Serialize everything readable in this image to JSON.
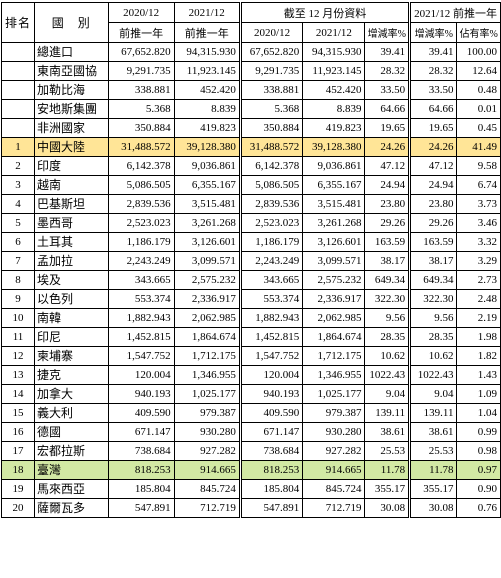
{
  "headers": {
    "rank": "排名",
    "country": "國　別",
    "y2020": "2020/12",
    "y2021": "2021/12",
    "dec_group": "截至 12 月份資料",
    "pre_year": "前推一年",
    "col_2020": "2020/12",
    "col_2021": "2021/12",
    "growth": "增減率%",
    "pre_group": "2021/12 前推一年",
    "growth2": "增減率%",
    "share": "佔有率%"
  },
  "summary_rows": [
    {
      "rank": "",
      "name": "總進口",
      "a": "67,652.820",
      "b": "94,315.930",
      "c": "67,652.820",
      "d": "94,315.930",
      "e": "39.41",
      "f": "39.41",
      "g": "100.00"
    },
    {
      "rank": "",
      "name": "東南亞國協",
      "a": "9,291.735",
      "b": "11,923.145",
      "c": "9,291.735",
      "d": "11,923.145",
      "e": "28.32",
      "f": "28.32",
      "g": "12.64"
    },
    {
      "rank": "",
      "name": "加勒比海",
      "a": "338.881",
      "b": "452.420",
      "c": "338.881",
      "d": "452.420",
      "e": "33.50",
      "f": "33.50",
      "g": "0.48"
    },
    {
      "rank": "",
      "name": "安地斯集團",
      "a": "5.368",
      "b": "8.839",
      "c": "5.368",
      "d": "8.839",
      "e": "64.66",
      "f": "64.66",
      "g": "0.01"
    },
    {
      "rank": "",
      "name": "非洲國家",
      "a": "350.884",
      "b": "419.823",
      "c": "350.884",
      "d": "419.823",
      "e": "19.65",
      "f": "19.65",
      "g": "0.45"
    }
  ],
  "rows": [
    {
      "rank": "1",
      "name": "中國大陸",
      "a": "31,488.572",
      "b": "39,128.380",
      "c": "31,488.572",
      "d": "39,128.380",
      "e": "24.26",
      "f": "24.26",
      "g": "41.49",
      "highlight": "orange"
    },
    {
      "rank": "2",
      "name": "印度",
      "a": "6,142.378",
      "b": "9,036.861",
      "c": "6,142.378",
      "d": "9,036.861",
      "e": "47.12",
      "f": "47.12",
      "g": "9.58"
    },
    {
      "rank": "3",
      "name": "越南",
      "a": "5,086.505",
      "b": "6,355.167",
      "c": "5,086.505",
      "d": "6,355.167",
      "e": "24.94",
      "f": "24.94",
      "g": "6.74"
    },
    {
      "rank": "4",
      "name": "巴基斯坦",
      "a": "2,839.536",
      "b": "3,515.481",
      "c": "2,839.536",
      "d": "3,515.481",
      "e": "23.80",
      "f": "23.80",
      "g": "3.73"
    },
    {
      "rank": "5",
      "name": "墨西哥",
      "a": "2,523.023",
      "b": "3,261.268",
      "c": "2,523.023",
      "d": "3,261.268",
      "e": "29.26",
      "f": "29.26",
      "g": "3.46"
    },
    {
      "rank": "6",
      "name": "土耳其",
      "a": "1,186.179",
      "b": "3,126.601",
      "c": "1,186.179",
      "d": "3,126.601",
      "e": "163.59",
      "f": "163.59",
      "g": "3.32"
    },
    {
      "rank": "7",
      "name": "孟加拉",
      "a": "2,243.249",
      "b": "3,099.571",
      "c": "2,243.249",
      "d": "3,099.571",
      "e": "38.17",
      "f": "38.17",
      "g": "3.29"
    },
    {
      "rank": "8",
      "name": "埃及",
      "a": "343.665",
      "b": "2,575.232",
      "c": "343.665",
      "d": "2,575.232",
      "e": "649.34",
      "f": "649.34",
      "g": "2.73"
    },
    {
      "rank": "9",
      "name": "以色列",
      "a": "553.374",
      "b": "2,336.917",
      "c": "553.374",
      "d": "2,336.917",
      "e": "322.30",
      "f": "322.30",
      "g": "2.48"
    },
    {
      "rank": "10",
      "name": "南韓",
      "a": "1,882.943",
      "b": "2,062.985",
      "c": "1,882.943",
      "d": "2,062.985",
      "e": "9.56",
      "f": "9.56",
      "g": "2.19"
    },
    {
      "rank": "11",
      "name": "印尼",
      "a": "1,452.815",
      "b": "1,864.674",
      "c": "1,452.815",
      "d": "1,864.674",
      "e": "28.35",
      "f": "28.35",
      "g": "1.98"
    },
    {
      "rank": "12",
      "name": "柬埔寨",
      "a": "1,547.752",
      "b": "1,712.175",
      "c": "1,547.752",
      "d": "1,712.175",
      "e": "10.62",
      "f": "10.62",
      "g": "1.82"
    },
    {
      "rank": "13",
      "name": "捷克",
      "a": "120.004",
      "b": "1,346.955",
      "c": "120.004",
      "d": "1,346.955",
      "e": "1022.43",
      "f": "1022.43",
      "g": "1.43"
    },
    {
      "rank": "14",
      "name": "加拿大",
      "a": "940.193",
      "b": "1,025.177",
      "c": "940.193",
      "d": "1,025.177",
      "e": "9.04",
      "f": "9.04",
      "g": "1.09"
    },
    {
      "rank": "15",
      "name": "義大利",
      "a": "409.590",
      "b": "979.387",
      "c": "409.590",
      "d": "979.387",
      "e": "139.11",
      "f": "139.11",
      "g": "1.04"
    },
    {
      "rank": "16",
      "name": "德國",
      "a": "671.147",
      "b": "930.280",
      "c": "671.147",
      "d": "930.280",
      "e": "38.61",
      "f": "38.61",
      "g": "0.99"
    },
    {
      "rank": "17",
      "name": "宏都拉斯",
      "a": "738.684",
      "b": "927.282",
      "c": "738.684",
      "d": "927.282",
      "e": "25.53",
      "f": "25.53",
      "g": "0.98"
    },
    {
      "rank": "18",
      "name": "臺灣",
      "a": "818.253",
      "b": "914.665",
      "c": "818.253",
      "d": "914.665",
      "e": "11.78",
      "f": "11.78",
      "g": "0.97",
      "highlight": "green"
    },
    {
      "rank": "19",
      "name": "馬來西亞",
      "a": "185.804",
      "b": "845.724",
      "c": "185.804",
      "d": "845.724",
      "e": "355.17",
      "f": "355.17",
      "g": "0.90"
    },
    {
      "rank": "20",
      "name": "薩爾瓦多",
      "a": "547.891",
      "b": "712.719",
      "c": "547.891",
      "d": "712.719",
      "e": "30.08",
      "f": "30.08",
      "g": "0.76"
    }
  ],
  "colors": {
    "highlight_orange": "#ffe597",
    "highlight_green": "#d2e9a4",
    "border": "#000000"
  }
}
